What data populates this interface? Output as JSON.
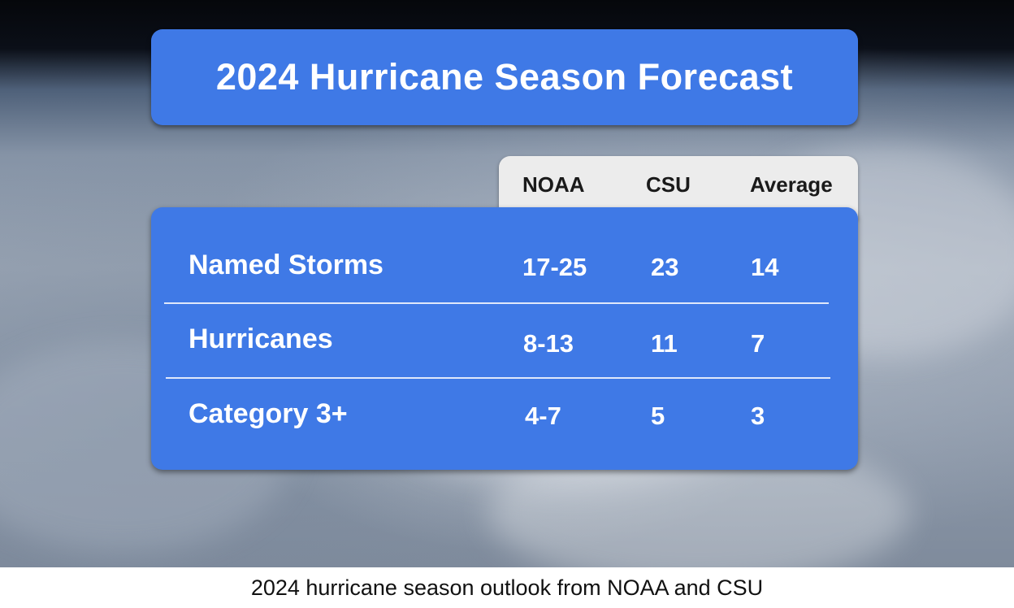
{
  "title": "2024 Hurricane Season Forecast",
  "caption": "2024 hurricane season outlook from NOAA and CSU",
  "colors": {
    "panel": "#3f79e6",
    "header_tab": "#ececec",
    "text_on_panel": "#ffffff",
    "header_text": "#1a1a1a"
  },
  "chart_data": {
    "type": "table",
    "title": "2024 Hurricane Season Forecast",
    "columns": [
      "NOAA",
      "CSU",
      "Average"
    ],
    "rows": [
      {
        "label": "Named Storms",
        "values": [
          "17-25",
          "23",
          "14"
        ]
      },
      {
        "label": "Hurricanes",
        "values": [
          "8-13",
          "11",
          "7"
        ]
      },
      {
        "label": "Category 3+",
        "values": [
          "4-7",
          "5",
          "3"
        ]
      }
    ]
  }
}
